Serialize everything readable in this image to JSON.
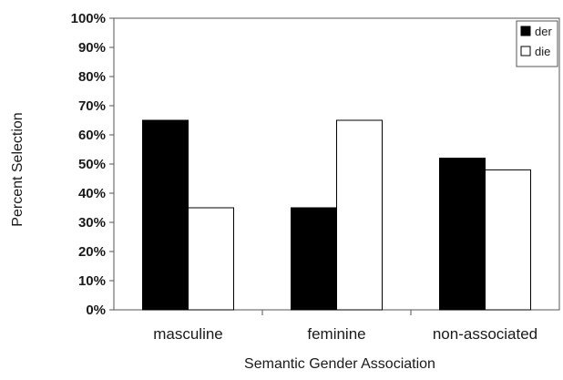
{
  "chart_data": {
    "type": "bar",
    "title": "",
    "xlabel": "Semantic Gender Association",
    "ylabel": "Percent Selection",
    "categories": [
      "masculine",
      "feminine",
      "non-associated"
    ],
    "series": [
      {
        "name": "der",
        "values": [
          65,
          35,
          52
        ],
        "color": "#000000"
      },
      {
        "name": "die",
        "values": [
          35,
          65,
          48
        ],
        "color": "#ffffff"
      }
    ],
    "ylim": [
      0,
      100
    ],
    "y_ticks": [
      "0%",
      "10%",
      "20%",
      "30%",
      "40%",
      "50%",
      "60%",
      "70%",
      "80%",
      "90%",
      "100%"
    ],
    "grid": false,
    "legend_position": "top-right",
    "colors": {
      "axis": "#555555",
      "bar_outline": "#000000"
    }
  }
}
